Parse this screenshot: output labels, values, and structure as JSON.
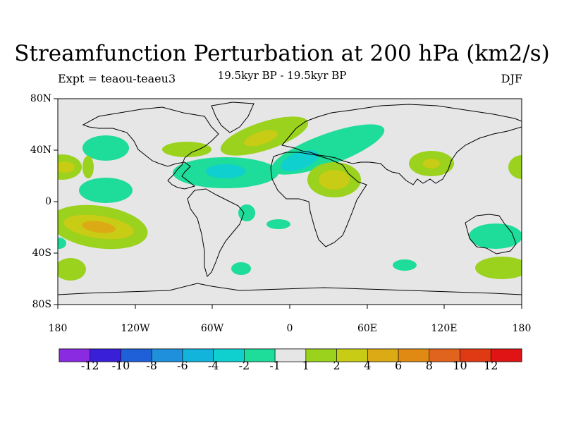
{
  "title": "Streamfunction Perturbation at 200 hPa (km2/s)",
  "subtitle": "19.5kyr BP - 19.5kyr BP",
  "left_label": "Expt = teaou-teaeu3",
  "right_label": "DJF",
  "lat_labels": [
    "80N",
    "40N",
    "0",
    "40S",
    "80S"
  ],
  "lon_labels": [
    "180",
    "120W",
    "60W",
    "0",
    "60E",
    "120E",
    "180"
  ],
  "colorbar": {
    "colors": [
      "#8a2be2",
      "#3a1fd8",
      "#1f5fd8",
      "#1e90dc",
      "#12b4dc",
      "#10cfcf",
      "#1edc9a",
      "#e6e6e6",
      "#9ad21e",
      "#c8cc14",
      "#dcaa14",
      "#e08a14",
      "#e0641e",
      "#e03a14",
      "#e01414"
    ],
    "labels": [
      "-12",
      "-10",
      "-8",
      "-6",
      "-4",
      "-2",
      "-1",
      "1",
      "2",
      "4",
      "6",
      "8",
      "10",
      "12"
    ]
  },
  "background_color": "#e6e6e6"
}
